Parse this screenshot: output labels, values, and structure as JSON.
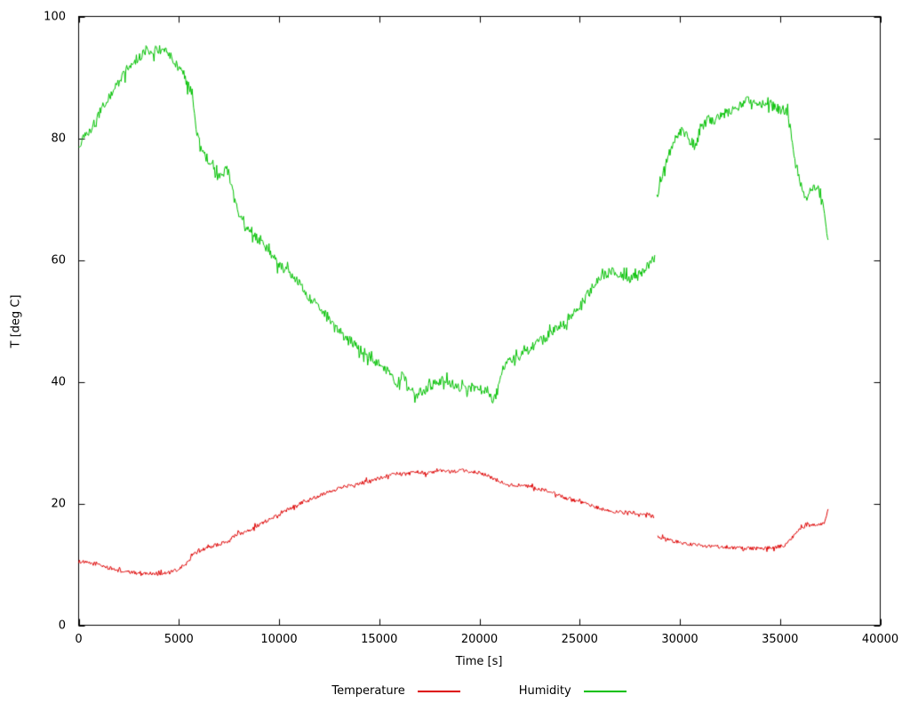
{
  "chart_data": {
    "type": "line",
    "title": "",
    "xlabel": "Time [s]",
    "ylabel": "T [deg C]",
    "xlim": [
      0,
      40000
    ],
    "ylim": [
      0,
      100
    ],
    "xticks": [
      0,
      5000,
      10000,
      15000,
      20000,
      25000,
      30000,
      35000,
      40000
    ],
    "yticks": [
      0,
      20,
      40,
      60,
      80,
      100
    ],
    "grid": false,
    "legend_position": "bottom-center",
    "series": [
      {
        "name": "Temperature",
        "color": "#dd0000",
        "noise": 0.3,
        "segments": [
          [
            [
              0,
              10.5
            ],
            [
              500,
              10.2
            ],
            [
              1000,
              10.0
            ],
            [
              1500,
              9.4
            ],
            [
              2000,
              9.0
            ],
            [
              2500,
              8.7
            ],
            [
              3000,
              8.6
            ],
            [
              3500,
              8.5
            ],
            [
              4000,
              8.5
            ],
            [
              4500,
              8.6
            ],
            [
              5000,
              9.2
            ],
            [
              5400,
              10.2
            ],
            [
              5700,
              11.5
            ],
            [
              6000,
              12.2
            ],
            [
              6500,
              12.8
            ],
            [
              7000,
              13.3
            ],
            [
              7500,
              13.8
            ],
            [
              7800,
              14.8
            ],
            [
              8200,
              15.2
            ],
            [
              8600,
              15.8
            ],
            [
              9000,
              16.5
            ],
            [
              9400,
              17.2
            ],
            [
              9800,
              17.6
            ],
            [
              10200,
              18.5
            ],
            [
              10600,
              19.3
            ],
            [
              11000,
              20.0
            ],
            [
              11400,
              20.5
            ],
            [
              11800,
              21.0
            ],
            [
              12200,
              21.6
            ],
            [
              12600,
              22.1
            ],
            [
              13000,
              22.5
            ],
            [
              13400,
              22.9
            ],
            [
              13800,
              23.2
            ],
            [
              14200,
              23.5
            ],
            [
              14600,
              23.8
            ],
            [
              15000,
              24.2
            ],
            [
              15400,
              24.5
            ],
            [
              15800,
              25.0
            ],
            [
              16200,
              24.8
            ],
            [
              16600,
              25.0
            ],
            [
              17000,
              25.2
            ],
            [
              17400,
              24.9
            ],
            [
              17800,
              25.2
            ],
            [
              18200,
              25.4
            ],
            [
              18600,
              25.2
            ],
            [
              19000,
              25.4
            ],
            [
              19400,
              25.3
            ],
            [
              19800,
              25.2
            ],
            [
              20200,
              24.8
            ],
            [
              20600,
              24.2
            ],
            [
              21000,
              23.6
            ],
            [
              21400,
              23.2
            ],
            [
              22000,
              23.0
            ],
            [
              22600,
              22.7
            ],
            [
              23200,
              22.2
            ],
            [
              23800,
              21.5
            ],
            [
              24400,
              20.8
            ],
            [
              25000,
              20.2
            ],
            [
              25600,
              19.6
            ],
            [
              26200,
              19.0
            ],
            [
              26800,
              18.6
            ],
            [
              27400,
              18.5
            ],
            [
              28000,
              18.4
            ],
            [
              28400,
              18.2
            ],
            [
              28700,
              17.8
            ]
          ],
          [
            [
              28900,
              14.6
            ],
            [
              29300,
              14.2
            ],
            [
              29700,
              13.8
            ],
            [
              30100,
              13.5
            ],
            [
              30500,
              13.3
            ],
            [
              31000,
              13.1
            ],
            [
              31500,
              13.0
            ],
            [
              32000,
              12.9
            ],
            [
              32500,
              12.8
            ],
            [
              33000,
              12.7
            ],
            [
              33500,
              12.6
            ],
            [
              34000,
              12.6
            ],
            [
              34500,
              12.7
            ],
            [
              34900,
              12.9
            ],
            [
              35200,
              13.1
            ],
            [
              35500,
              13.9
            ],
            [
              35800,
              15.3
            ],
            [
              36100,
              16.0
            ],
            [
              36400,
              16.4
            ],
            [
              36700,
              16.4
            ],
            [
              37000,
              16.5
            ],
            [
              37200,
              16.9
            ],
            [
              37400,
              19.0
            ]
          ]
        ]
      },
      {
        "name": "Humidity",
        "color": "#00c000",
        "noise": 0.8,
        "segments": [
          [
            [
              0,
              78.5
            ],
            [
              200,
              80.5
            ],
            [
              500,
              81.2
            ],
            [
              800,
              82.5
            ],
            [
              1100,
              84.5
            ],
            [
              1400,
              86.0
            ],
            [
              1700,
              87.8
            ],
            [
              2000,
              89.3
            ],
            [
              2400,
              91.2
            ],
            [
              2800,
              92.8
            ],
            [
              3200,
              93.8
            ],
            [
              3600,
              94.3
            ],
            [
              4000,
              94.5
            ],
            [
              4400,
              94.0
            ],
            [
              4800,
              92.6
            ],
            [
              5100,
              91.0
            ],
            [
              5400,
              89.3
            ],
            [
              5700,
              86.0
            ],
            [
              5900,
              81.0
            ],
            [
              6100,
              78.3
            ],
            [
              6400,
              77.0
            ],
            [
              6700,
              75.0
            ],
            [
              7000,
              73.5
            ],
            [
              7200,
              74.3
            ],
            [
              7400,
              75.2
            ],
            [
              7600,
              72.5
            ],
            [
              7800,
              69.5
            ],
            [
              8000,
              67.5
            ],
            [
              8300,
              65.8
            ],
            [
              8600,
              64.8
            ],
            [
              9000,
              63.2
            ],
            [
              9500,
              61.3
            ],
            [
              10000,
              59.2
            ],
            [
              10500,
              57.8
            ],
            [
              11000,
              56.2
            ],
            [
              11500,
              53.8
            ],
            [
              12000,
              52.2
            ],
            [
              12500,
              50.2
            ],
            [
              13000,
              48.6
            ],
            [
              13500,
              47.0
            ],
            [
              14000,
              45.5
            ],
            [
              14500,
              44.2
            ],
            [
              15000,
              43.2
            ],
            [
              15500,
              41.5
            ],
            [
              15900,
              39.8
            ],
            [
              16200,
              41.0
            ],
            [
              16500,
              38.8
            ],
            [
              16900,
              38.0
            ],
            [
              17300,
              38.6
            ],
            [
              17700,
              39.6
            ],
            [
              18100,
              40.2
            ],
            [
              18500,
              39.6
            ],
            [
              18900,
              39.4
            ],
            [
              19300,
              38.6
            ],
            [
              19700,
              39.2
            ],
            [
              20100,
              38.6
            ],
            [
              20400,
              38.2
            ],
            [
              20700,
              37.0
            ],
            [
              20900,
              38.5
            ],
            [
              21100,
              41.5
            ],
            [
              21400,
              43.2
            ],
            [
              21800,
              43.8
            ],
            [
              22200,
              44.6
            ],
            [
              22700,
              45.8
            ],
            [
              23200,
              47.0
            ],
            [
              23700,
              48.2
            ],
            [
              24200,
              49.8
            ],
            [
              24700,
              51.2
            ],
            [
              25100,
              52.8
            ],
            [
              25500,
              54.8
            ],
            [
              25900,
              56.6
            ],
            [
              26300,
              57.6
            ],
            [
              26700,
              58.2
            ],
            [
              27100,
              57.6
            ],
            [
              27500,
              56.6
            ],
            [
              27900,
              57.2
            ],
            [
              28300,
              58.8
            ],
            [
              28600,
              59.8
            ],
            [
              28750,
              60.5
            ]
          ],
          [
            [
              28850,
              71.0
            ],
            [
              29100,
              73.8
            ],
            [
              29400,
              76.8
            ],
            [
              29700,
              79.8
            ],
            [
              29900,
              80.8
            ],
            [
              30200,
              81.2
            ],
            [
              30500,
              79.8
            ],
            [
              30800,
              78.6
            ],
            [
              31100,
              81.8
            ],
            [
              31400,
              83.2
            ],
            [
              31700,
              83.0
            ],
            [
              32000,
              83.6
            ],
            [
              32300,
              84.2
            ],
            [
              32600,
              84.6
            ],
            [
              33000,
              85.2
            ],
            [
              33300,
              86.0
            ],
            [
              33700,
              86.2
            ],
            [
              34100,
              85.6
            ],
            [
              34400,
              86.0
            ],
            [
              34700,
              85.2
            ],
            [
              35000,
              84.6
            ],
            [
              35300,
              84.6
            ],
            [
              35500,
              83.0
            ],
            [
              35700,
              76.5
            ],
            [
              35900,
              74.2
            ],
            [
              36100,
              71.8
            ],
            [
              36300,
              70.2
            ],
            [
              36500,
              71.2
            ],
            [
              36700,
              72.2
            ],
            [
              36900,
              71.6
            ],
            [
              37100,
              70.0
            ],
            [
              37300,
              66.0
            ],
            [
              37400,
              62.5
            ]
          ]
        ]
      }
    ]
  }
}
